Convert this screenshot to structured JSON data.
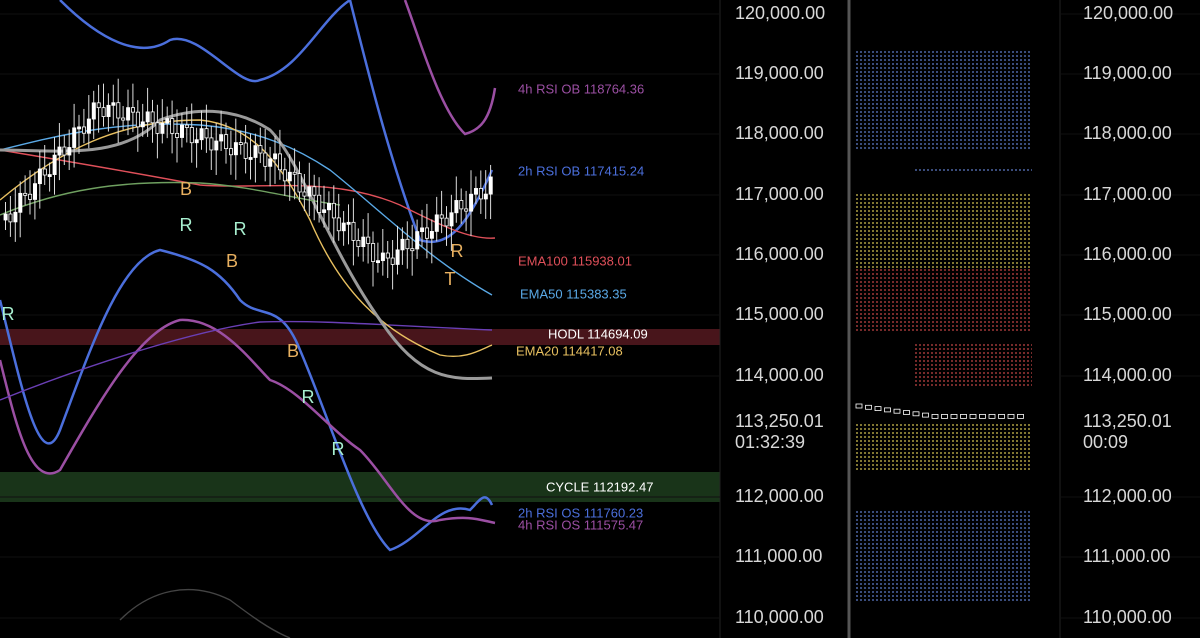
{
  "left_axis": {
    "labels": [
      "120,000.00",
      "119,000.00",
      "118,000.00",
      "117,000.00",
      "116,000.00",
      "115,000.00",
      "114,000.00",
      "112,000.00",
      "111,000.00",
      "110,000.00"
    ],
    "current_price": "113,250.01",
    "countdown": "01:32:39"
  },
  "right_axis": {
    "labels": [
      "120,000.00",
      "119,000.00",
      "118,000.00",
      "117,000.00",
      "116,000.00",
      "115,000.00",
      "114,000.00",
      "112,000.00",
      "111,000.00",
      "110,000.00"
    ],
    "current_price": "113,250.01",
    "countdown": "00:09"
  },
  "indicators": [
    {
      "label": "4h RSI OB 118764.36",
      "color": "#9b4fa3"
    },
    {
      "label": "2h RSI OB 117415.24",
      "color": "#4b6fdc"
    },
    {
      "label": "EMA100 115938.01",
      "color": "#e0505a"
    },
    {
      "label": "EMA50 115383.35",
      "color": "#5aa9e6"
    },
    {
      "label": "HODL 114694.09",
      "color": "#ffffff"
    },
    {
      "label": "EMA20 114417.08",
      "color": "#e8c060"
    },
    {
      "label": "CYCLE 112192.47",
      "color": "#ffffff"
    },
    {
      "label": "2h RSI OS 111760.23",
      "color": "#4b6fdc"
    },
    {
      "label": "4h RSI OS 111575.47",
      "color": "#9b4fa3"
    }
  ],
  "markers": [
    "R",
    "B",
    "R",
    "R",
    "B",
    "B",
    "R",
    "R",
    "R",
    "T"
  ]
}
